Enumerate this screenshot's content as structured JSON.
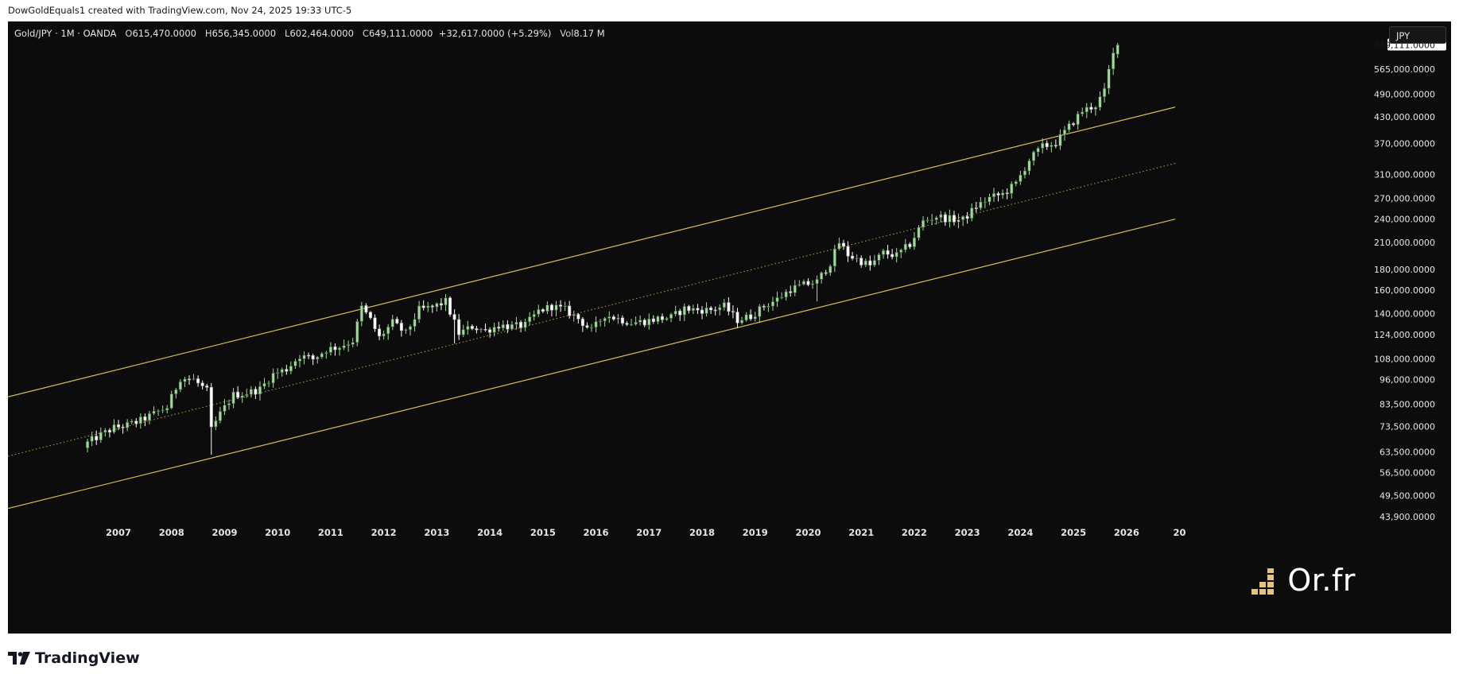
{
  "caption": "DowGoldEquals1 created with TradingView.com, Nov 24, 2025 19:33 UTC-5",
  "brand": {
    "name": "TradingView",
    "logo_icon": "tradingview-logo-icon"
  },
  "watermark": {
    "text": "Or.fr",
    "icon": "gold-bars-icon"
  },
  "currency_button": "JPY",
  "legend": {
    "symbol": "Gold/JPY · 1M · OANDA",
    "open_label": "O",
    "open": "615,470.0000",
    "high_label": "H",
    "high": "656,345.0000",
    "low_label": "L",
    "low": "602,464.0000",
    "close_label": "C",
    "close": "649,111.0000",
    "change": "+32,617.0000 (+5.29%)",
    "vol_label": "Vol",
    "vol": "8.17 M"
  },
  "colors": {
    "background": "#0c0c0c",
    "up_candle": "#a7d7a0",
    "down_candle": "#ffffff",
    "channel_line": "#d9c04a",
    "axis_text": "#e6e6e6"
  },
  "chart_data": {
    "type": "candlestick",
    "scale": "log",
    "y_range": [
      43900,
      656345
    ],
    "x_range": [
      "2004-12",
      "2026-12"
    ],
    "last_price_label": "649,111.0000",
    "y_ticks": [
      "565,000.0000",
      "490,000.0000",
      "430,000.0000",
      "370,000.0000",
      "310,000.0000",
      "270,000.0000",
      "240,000.0000",
      "210,000.0000",
      "180,000.0000",
      "160,000.0000",
      "140,000.0000",
      "124,000.0000",
      "108,000.0000",
      "96,000.0000",
      "83,500.0000",
      "73,500.0000",
      "63,500.0000",
      "56,500.0000",
      "49,500.0000",
      "43,900.0000"
    ],
    "x_ticks": [
      "2007",
      "2008",
      "2009",
      "2010",
      "2011",
      "2012",
      "2013",
      "2014",
      "2015",
      "2016",
      "2017",
      "2018",
      "2019",
      "2020",
      "2021",
      "2022",
      "2023",
      "2024",
      "2025",
      "2026",
      "20"
    ],
    "channel": {
      "upper": [
        [
          "2004-12",
          87000
        ],
        [
          "2026-12",
          455000
        ]
      ],
      "middle": [
        [
          "2004-12",
          62000
        ],
        [
          "2026-12",
          330000
        ]
      ],
      "lower": [
        [
          "2004-12",
          46000
        ],
        [
          "2026-12",
          240000
        ]
      ]
    },
    "anchors": [
      [
        "2006-06",
        67000
      ],
      [
        "2006-09",
        70000
      ],
      [
        "2006-12",
        73000
      ],
      [
        "2007-03",
        74000
      ],
      [
        "2007-06",
        76000
      ],
      [
        "2007-09",
        79000
      ],
      [
        "2007-12",
        82000
      ],
      [
        "2008-03",
        97000
      ],
      [
        "2008-06",
        96000
      ],
      [
        "2008-09",
        90000
      ],
      [
        "2008-10",
        72000
      ],
      [
        "2008-12",
        79000
      ],
      [
        "2009-03",
        88000
      ],
      [
        "2009-06",
        89000
      ],
      [
        "2009-09",
        91000
      ],
      [
        "2009-12",
        99000
      ],
      [
        "2010-03",
        102000
      ],
      [
        "2010-06",
        110000
      ],
      [
        "2010-09",
        108000
      ],
      [
        "2010-12",
        114000
      ],
      [
        "2011-03",
        116000
      ],
      [
        "2011-06",
        120000
      ],
      [
        "2011-08",
        145000
      ],
      [
        "2011-10",
        135000
      ],
      [
        "2011-12",
        122000
      ],
      [
        "2012-03",
        133000
      ],
      [
        "2012-06",
        125000
      ],
      [
        "2012-09",
        143000
      ],
      [
        "2012-12",
        145000
      ],
      [
        "2013-03",
        150000
      ],
      [
        "2013-06",
        125000
      ],
      [
        "2013-09",
        130000
      ],
      [
        "2013-12",
        127000
      ],
      [
        "2014-03",
        131000
      ],
      [
        "2014-06",
        130000
      ],
      [
        "2014-09",
        131000
      ],
      [
        "2014-12",
        142000
      ],
      [
        "2015-03",
        146000
      ],
      [
        "2015-06",
        143000
      ],
      [
        "2015-09",
        136000
      ],
      [
        "2015-12",
        127000
      ],
      [
        "2016-03",
        139000
      ],
      [
        "2016-06",
        136000
      ],
      [
        "2016-09",
        133000
      ],
      [
        "2016-12",
        134000
      ],
      [
        "2017-03",
        136000
      ],
      [
        "2017-06",
        137000
      ],
      [
        "2017-09",
        144000
      ],
      [
        "2017-12",
        143000
      ],
      [
        "2018-03",
        143000
      ],
      [
        "2018-06",
        146000
      ],
      [
        "2018-09",
        135000
      ],
      [
        "2018-12",
        138000
      ],
      [
        "2019-03",
        146000
      ],
      [
        "2019-06",
        152000
      ],
      [
        "2019-09",
        161000
      ],
      [
        "2019-12",
        165000
      ],
      [
        "2020-03",
        168000
      ],
      [
        "2020-06",
        187000
      ],
      [
        "2020-08",
        210000
      ],
      [
        "2020-10",
        196000
      ],
      [
        "2020-12",
        191000
      ],
      [
        "2021-03",
        184000
      ],
      [
        "2021-06",
        198000
      ],
      [
        "2021-09",
        195000
      ],
      [
        "2021-12",
        208000
      ],
      [
        "2022-03",
        237000
      ],
      [
        "2022-06",
        244000
      ],
      [
        "2022-09",
        240000
      ],
      [
        "2022-12",
        239000
      ],
      [
        "2023-03",
        258000
      ],
      [
        "2023-06",
        271000
      ],
      [
        "2023-09",
        277000
      ],
      [
        "2023-12",
        294000
      ],
      [
        "2024-03",
        337000
      ],
      [
        "2024-06",
        363000
      ],
      [
        "2024-09",
        371000
      ],
      [
        "2024-12",
        407000
      ],
      [
        "2025-03",
        445000
      ],
      [
        "2025-06",
        460000
      ],
      [
        "2025-08",
        497000
      ],
      [
        "2025-09",
        560000
      ],
      [
        "2025-10",
        615000
      ],
      [
        "2025-11",
        649111
      ]
    ]
  }
}
